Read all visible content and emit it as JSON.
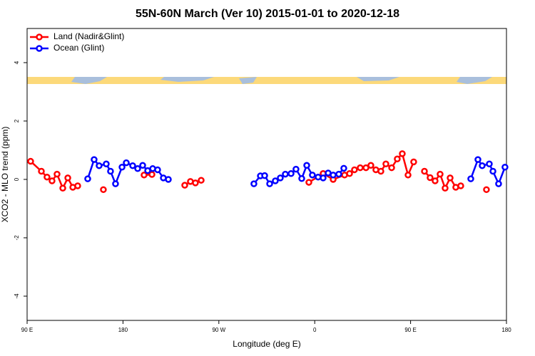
{
  "chart_data": {
    "type": "line",
    "title": "55N-60N March (Ver 10)   2015-01-01 to 2020-12-18",
    "x_label": "Longitude (deg E)",
    "y_label": "XCO2 - MLO trend (ppm)",
    "xlim": [
      90,
      540
    ],
    "xticks": [
      {
        "value": 90,
        "label": "90 E"
      },
      180,
      {
        "value": 270,
        "label": "90 W"
      },
      {
        "value": 360,
        "label": "0"
      },
      {
        "value": 450,
        "label": "90 E"
      },
      {
        "value": 540,
        "label": "180"
      }
    ],
    "ylim": [
      -4.83,
      5.17
    ],
    "yticks": [
      -4,
      -2,
      0,
      2,
      4
    ],
    "legend": "top-left",
    "series": [
      {
        "name": "Land (Nadir&Glint)",
        "color": "#ff0000",
        "x": [
          93.3,
          103.4,
          108.7,
          113.4,
          118.1,
          123.5,
          128.2,
          132.9,
          137.5,
          null,
          161.6,
          null,
          199.8,
          207.2,
          null,
          238.0,
          243.3,
          248.0,
          253.4,
          null,
          354.5,
          367.9,
          377.3,
          388.0,
          392.7,
          397.3,
          402.7,
          408.1,
          412.7,
          417.4,
          422.1,
          426.8,
          432.2,
          437.5,
          442.2,
          447.6,
          452.9,
          null,
          463.0,
          468.3,
          473.0,
          477.7,
          482.4,
          487.1,
          492.4,
          497.1,
          null,
          521.2
        ],
        "values": [
          0.62,
          0.28,
          0.08,
          -0.05,
          0.18,
          -0.3,
          0.05,
          -0.27,
          -0.22,
          null,
          -0.35,
          null,
          0.15,
          0.17,
          null,
          -0.2,
          -0.07,
          -0.12,
          -0.03,
          null,
          -0.1,
          0.2,
          0.0,
          0.15,
          0.2,
          0.33,
          0.4,
          0.4,
          0.48,
          0.33,
          0.28,
          0.53,
          0.4,
          0.7,
          0.88,
          0.15,
          0.6,
          null,
          0.28,
          0.06,
          -0.05,
          0.18,
          -0.3,
          0.05,
          -0.27,
          -0.22,
          null,
          -0.35
        ]
      },
      {
        "name": "Ocean (Glint)",
        "color": "#0000ff",
        "x": [
          146.9,
          152.9,
          157.6,
          164.3,
          168.3,
          173.0,
          179.1,
          183.1,
          189.1,
          193.8,
          198.5,
          203.2,
          207.9,
          212.5,
          217.9,
          222.6,
          null,
          302.9,
          309.0,
          313.0,
          317.7,
          323.0,
          327.7,
          332.4,
          337.8,
          342.4,
          347.8,
          352.5,
          357.8,
          363.2,
          367.9,
          372.6,
          377.3,
          382.6,
          387.3,
          null,
          506.5,
          513.2,
          517.2,
          523.9,
          527.3,
          532.6,
          538.6
        ],
        "values": [
          0.02,
          0.68,
          0.47,
          0.53,
          0.28,
          -0.15,
          0.42,
          0.57,
          0.47,
          0.37,
          0.48,
          0.3,
          0.37,
          0.33,
          0.05,
          0.0,
          null,
          -0.15,
          0.12,
          0.13,
          -0.15,
          -0.05,
          0.05,
          0.18,
          0.2,
          0.35,
          0.03,
          0.48,
          0.15,
          0.08,
          0.05,
          0.22,
          0.15,
          0.18,
          0.38,
          null,
          0.02,
          0.68,
          0.47,
          0.53,
          0.28,
          -0.15,
          0.42
        ]
      }
    ]
  }
}
